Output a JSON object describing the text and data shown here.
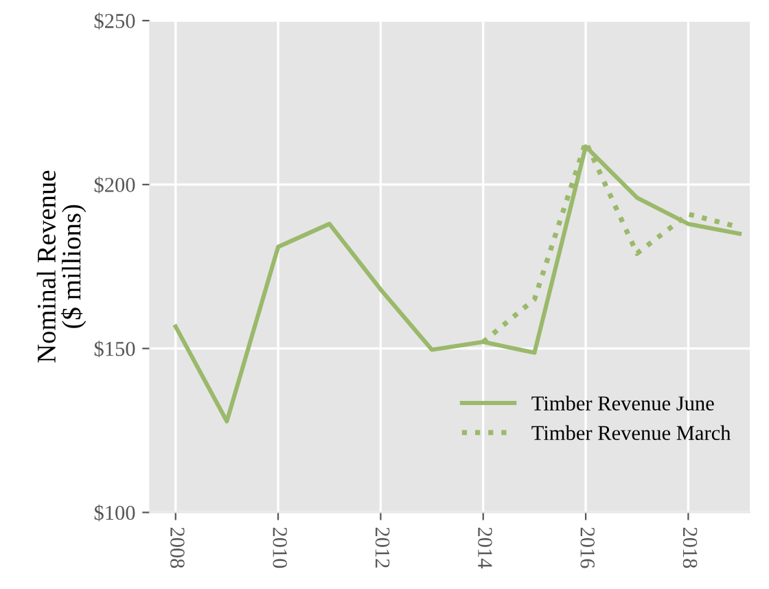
{
  "chart_data": {
    "type": "line",
    "ylabel": "Nominal Revenue\n($ millions)",
    "x": [
      2008,
      2009,
      2010,
      2011,
      2012,
      2013,
      2014,
      2015,
      2016,
      2017,
      2018,
      2019
    ],
    "series": [
      {
        "name": "Timber Revenue June",
        "color": "#9ab96b",
        "line_style": "solid",
        "values": [
          156.7,
          127.8,
          181,
          188,
          168,
          149.6,
          152,
          148.7,
          211.6,
          196,
          188,
          185
        ]
      },
      {
        "name": "Timber Revenue March",
        "color": "#9ab96b",
        "line_style": "dotted",
        "x": [
          2014,
          2015,
          2016,
          2017,
          2018,
          2019
        ],
        "values": [
          152,
          165,
          213,
          179,
          191,
          187
        ]
      }
    ],
    "xlim": [
      2007.5,
      2019.2
    ],
    "xticks": [
      2008,
      2010,
      2012,
      2014,
      2016,
      2018
    ],
    "ylim": [
      100,
      250
    ],
    "yticks": [
      {
        "value": 100,
        "label": "$100"
      },
      {
        "value": 150,
        "label": "$150"
      },
      {
        "value": 200,
        "label": "$200"
      },
      {
        "value": 250,
        "label": "$250"
      }
    ],
    "grid": true,
    "legend": "lower right",
    "marker": "none"
  }
}
